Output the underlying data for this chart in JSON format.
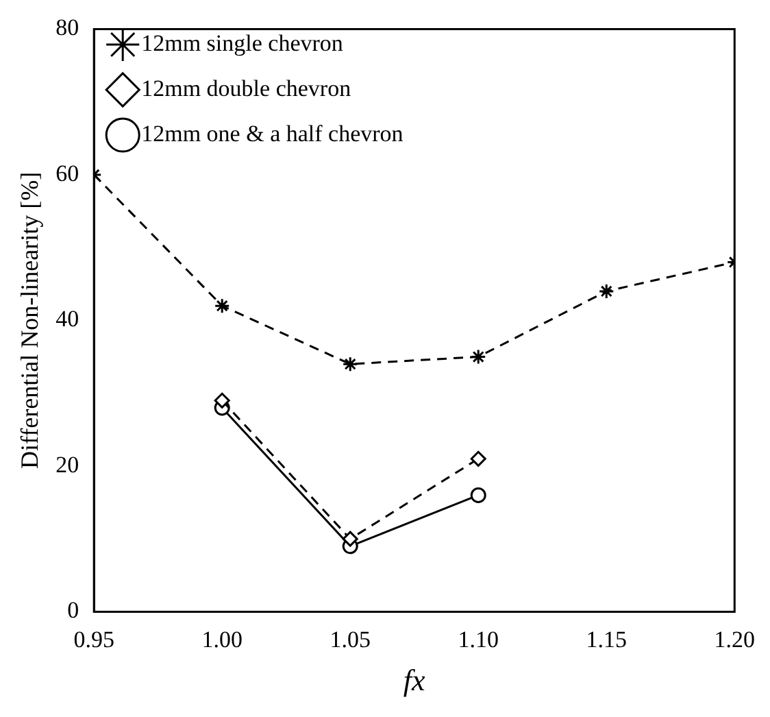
{
  "chart_data": {
    "type": "line",
    "xlabel": "fx",
    "ylabel": "Differential Non-linearity [%]",
    "xlim": [
      0.95,
      1.2
    ],
    "xticks": [
      {
        "value": 0.95,
        "label": "0.95"
      },
      {
        "value": 1,
        "label": "1.00"
      },
      {
        "value": 1.05,
        "label": "1.05"
      },
      {
        "value": 1.1,
        "label": "1.10"
      },
      {
        "value": 1.15,
        "label": "1.15"
      },
      {
        "value": 1.2,
        "label": "1.20"
      }
    ],
    "ylim": [
      0,
      80
    ],
    "yticks": [
      0,
      20,
      40,
      60,
      80
    ],
    "grid": false,
    "legend": "top left",
    "series": [
      {
        "name": "12mm single chevron",
        "color": "#000000",
        "marker": "cross",
        "line_style": "dashed",
        "x": [
          0.95,
          1,
          1.05,
          1.1,
          1.15,
          1.2
        ],
        "values": [
          60,
          42,
          34,
          35,
          44,
          48
        ]
      },
      {
        "name": "12mm double chevron",
        "color": "#000000",
        "marker": "diamond",
        "line_style": "dashed",
        "x": [
          1,
          1.05,
          1.1
        ],
        "values": [
          29,
          10,
          21
        ]
      },
      {
        "name": "12mm one & a half chevron",
        "color": "#000000",
        "marker": "circle",
        "line_style": "solid",
        "x": [
          1,
          1.05,
          1.1
        ],
        "values": [
          28,
          9,
          16
        ]
      }
    ]
  }
}
